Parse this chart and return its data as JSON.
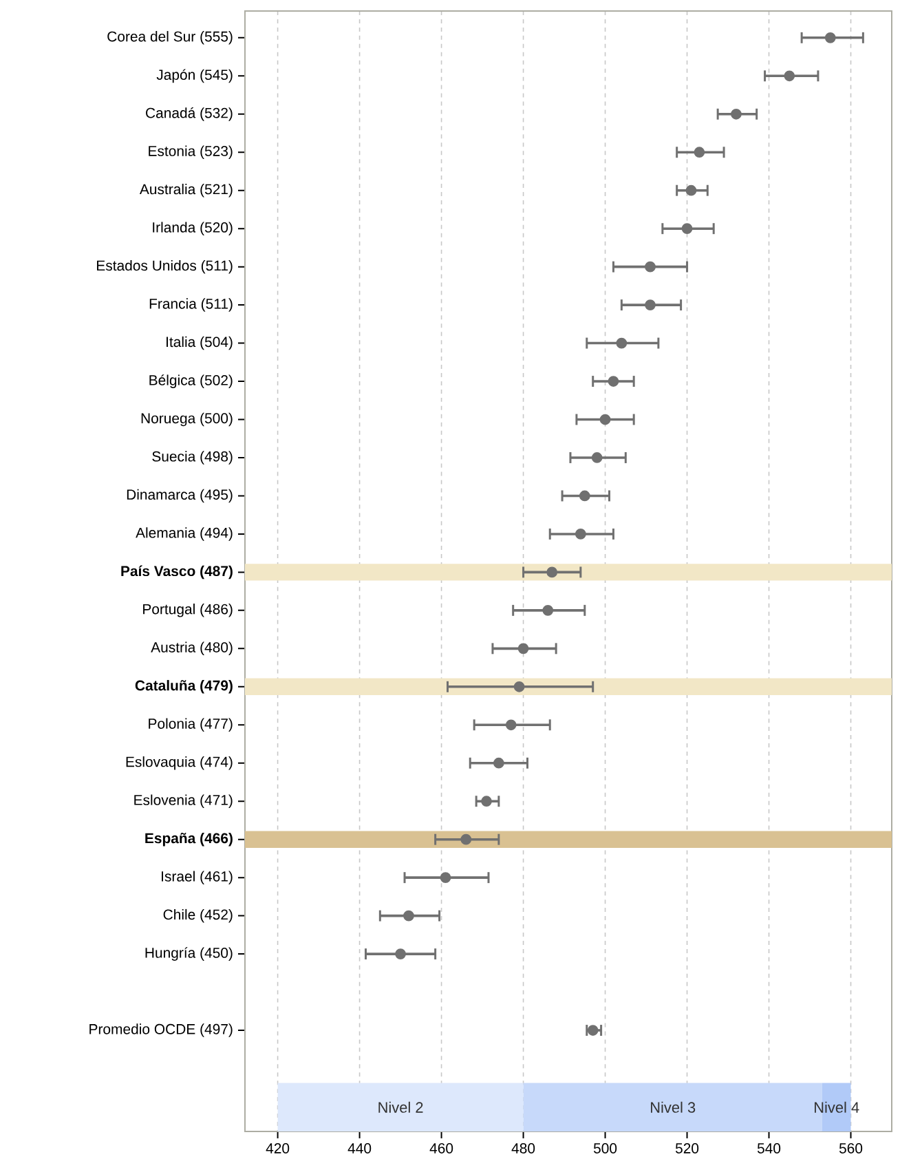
{
  "chart_data": {
    "type": "scatter",
    "orientation": "horizontal",
    "categories": [
      "Corea del Sur (555)",
      "Japón (545)",
      "Canadá (532)",
      "Estonia (523)",
      "Australia (521)",
      "Irlanda (520)",
      "Estados Unidos (511)",
      "Francia (511)",
      "Italia (504)",
      "Bélgica (502)",
      "Noruega (500)",
      "Suecia (498)",
      "Dinamarca (495)",
      "Alemania (494)",
      "País Vasco (487)",
      "Portugal (486)",
      "Austria (480)",
      "Cataluña (479)",
      "Polonia (477)",
      "Eslovaquia (474)",
      "Eslovenia (471)",
      "España (466)",
      "Israel (461)",
      "Chile (452)",
      "Hungría (450)",
      null,
      "Promedio OCDE (497)",
      null,
      null
    ],
    "series": [
      {
        "color": "#707070",
        "values": [
          555,
          545,
          532,
          523,
          521,
          520,
          511,
          511,
          504,
          502,
          500,
          498,
          495,
          494,
          487,
          486,
          480,
          479,
          477,
          474,
          471,
          466,
          461,
          452,
          450,
          null,
          497,
          null,
          null
        ],
        "errors": [
          [
            548,
            563
          ],
          [
            539,
            552
          ],
          [
            527.5,
            537
          ],
          [
            517.5,
            529
          ],
          [
            517.5,
            525
          ],
          [
            514,
            526.5
          ],
          [
            502,
            520
          ],
          [
            504,
            518.5
          ],
          [
            495.5,
            513
          ],
          [
            497,
            507
          ],
          [
            493,
            507
          ],
          [
            491.5,
            505
          ],
          [
            489.5,
            501
          ],
          [
            486.5,
            502
          ],
          [
            480,
            494
          ],
          [
            477.5,
            495
          ],
          [
            472.5,
            488
          ],
          [
            461.5,
            497
          ],
          [
            468,
            486.5
          ],
          [
            467,
            481
          ],
          [
            468.5,
            474
          ],
          [
            458.5,
            474
          ],
          [
            451,
            471.5
          ],
          [
            445,
            459.5
          ],
          [
            441.5,
            458.5
          ],
          null,
          [
            495.5,
            499
          ],
          null,
          null
        ]
      }
    ],
    "xlim": [
      412,
      570
    ],
    "xticks": [
      420,
      440,
      460,
      480,
      500,
      520,
      540,
      560
    ],
    "grid": "x",
    "marker": "circle",
    "bands": [
      {
        "axis": "y",
        "from": "País Vasco (487)",
        "to": "País Vasco (487)",
        "color": "#f2e7c6"
      },
      {
        "axis": "y",
        "from": "Cataluña (479)",
        "to": "Cataluña (479)",
        "color": "#f2e7c6"
      },
      {
        "axis": "y",
        "from": "España (466)",
        "to": "España (466)",
        "color": "#d9c192"
      },
      {
        "axis": "x",
        "from": 420,
        "to": 480,
        "label": "Nivel 2",
        "color": "#dde8fc"
      },
      {
        "axis": "x",
        "from": 480,
        "to": 553,
        "label": "Nivel 3",
        "color": "#c7d9fa"
      },
      {
        "axis": "x",
        "from": 553,
        "to": 560,
        "label": "Nivel 4",
        "color": "#b1caf8"
      }
    ]
  }
}
